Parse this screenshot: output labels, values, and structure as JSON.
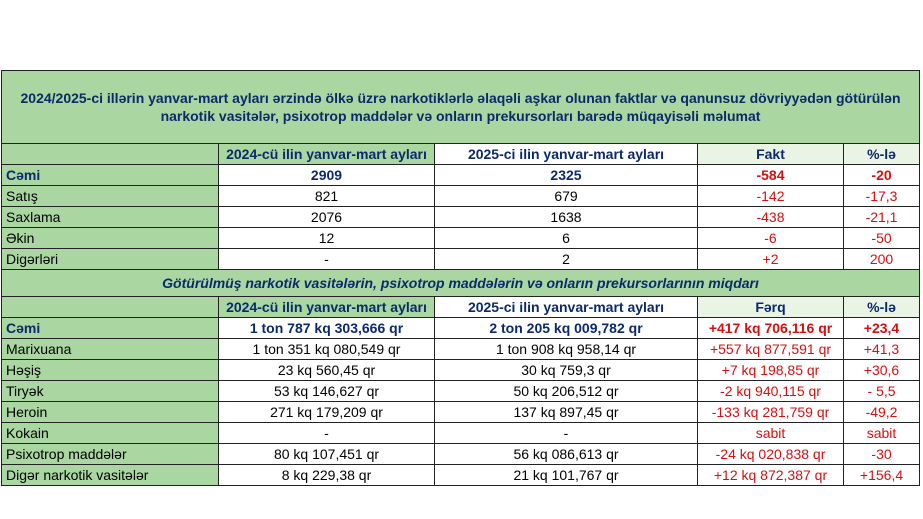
{
  "title": "2024/2025-ci illərin yanvar-mart ayları ərzində ölkə üzrə narkotiklərlə əlaqəli aşkar olunan faktlar və qanunsuz dövriyyədən götürülən narkotik vasitələr, psixotrop maddələr və onların prekursorları barədə müqayisəli məlumat",
  "section1": {
    "headers": [
      "",
      "2024-cü ilin yanvar-mart ayları",
      "2025-ci ilin yanvar-mart ayları",
      "Fakt",
      "%-lə"
    ],
    "rows": [
      {
        "label": "Cəmi",
        "v2024": "2909",
        "v2025": "2325",
        "diff": "-584",
        "pct": "-20"
      },
      {
        "label": "Satış",
        "v2024": "821",
        "v2025": "679",
        "diff": "-142",
        "pct": "-17,3"
      },
      {
        "label": "Saxlama",
        "v2024": "2076",
        "v2025": "1638",
        "diff": "-438",
        "pct": "-21,1"
      },
      {
        "label": "Əkin",
        "v2024": "12",
        "v2025": "6",
        "diff": "-6",
        "pct": "-50"
      },
      {
        "label": "Digərləri",
        "v2024": "-",
        "v2025": "2",
        "diff": "+2",
        "pct": "200"
      }
    ]
  },
  "subtitle": "Götürülmüş narkotik vasitələrin, psixotrop maddələrin və onların prekursorlarının miqdarı",
  "section2": {
    "headers": [
      "",
      "2024-cü ilin yanvar-mart ayları",
      "2025-ci ilin yanvar-mart ayları",
      "Fərq",
      "%-lə"
    ],
    "rows": [
      {
        "label": "Cəmi",
        "v2024": "1 ton 787 kq 303,666 qr",
        "v2025": "2 ton 205 kq 009,782 qr",
        "diff": "+417 kq 706,116 qr",
        "pct": "+23,4"
      },
      {
        "label": "Marixuana",
        "v2024": "1 ton 351 kq 080,549 qr",
        "v2025": "1 ton 908 kq 958,14 qr",
        "diff": "+557 kq 877,591 qr",
        "pct": "+41,3"
      },
      {
        "label": "Həşiş",
        "v2024": "23 kq 560,45 qr",
        "v2025": "30 kq 759,3 qr",
        "diff": "+7 kq 198,85 qr",
        "pct": "+30,6"
      },
      {
        "label": "Tiryək",
        "v2024": "53 kq 146,627 qr",
        "v2025": "50 kq 206,512 qr",
        "diff": "-2 kq 940,115 qr",
        "pct": "- 5,5"
      },
      {
        "label": "Heroin",
        "v2024": "271 kq 179,209 qr",
        "v2025": "137 kq 897,45 qr",
        "diff": "-133 kq 281,759 qr",
        "pct": "-49,2"
      },
      {
        "label": "Kokain",
        "v2024": "-",
        "v2025": "-",
        "diff": "sabit",
        "pct": "sabit"
      },
      {
        "label": "Psixotrop maddələr",
        "v2024": "80 kq 107,451 qr",
        "v2025": "56 kq 086,613 qr",
        "diff": "-24 kq 020,838 qr",
        "pct": "-30"
      },
      {
        "label": "Digər narkotik vasitələr",
        "v2024": "8 kq 229,38 qr",
        "v2025": "21 kq 101,767 qr",
        "diff": "+12 kq 872,387 qr",
        "pct": "+156,4"
      }
    ]
  }
}
